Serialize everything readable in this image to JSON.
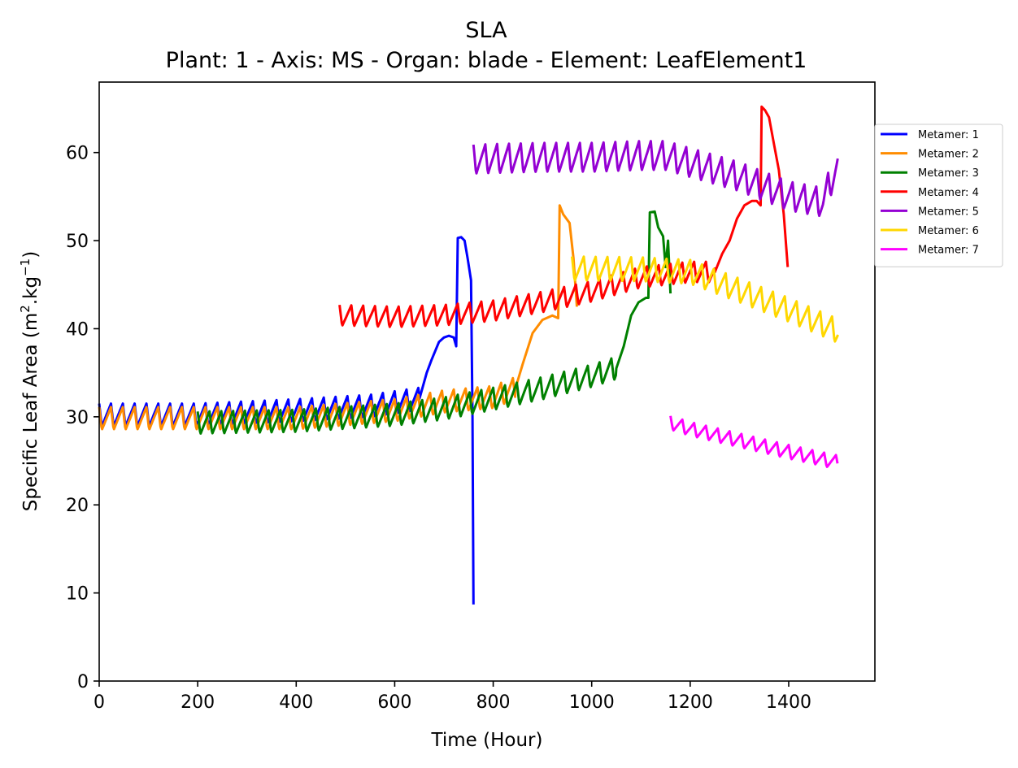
{
  "chart_data": {
    "type": "line",
    "title": "SLA",
    "subtitle": "Plant: 1 - Axis: MS - Organ: blade - Element: LeafElement1",
    "xlabel": "Time (Hour)",
    "ylabel_main": "Specific Leaf Area (m",
    "ylabel_sup1": "2",
    "ylabel_mid": ".kg",
    "ylabel_sup2": "−1",
    "ylabel_end": ")",
    "xlim": [
      0,
      1575
    ],
    "ylim": [
      0,
      68
    ],
    "xticks": [
      0,
      200,
      400,
      600,
      800,
      1000,
      1200,
      1400
    ],
    "yticks": [
      0,
      10,
      20,
      30,
      40,
      50,
      60
    ],
    "grid": false,
    "legend_position": "right-outside-top",
    "series": [
      {
        "name": "Metamer: 1",
        "color": "#0000ff",
        "oscillation": {
          "period": 24,
          "amplitude": 1.3
        },
        "base": [
          [
            0,
            30.2
          ],
          [
            200,
            30.2
          ],
          [
            400,
            30.7
          ],
          [
            550,
            31.2
          ],
          [
            650,
            32.0
          ]
        ],
        "tail": [
          [
            650,
            32.0
          ],
          [
            665,
            35
          ],
          [
            675,
            36.5
          ],
          [
            690,
            38.5
          ],
          [
            700,
            39
          ],
          [
            710,
            39.2
          ],
          [
            720,
            39
          ],
          [
            725,
            38
          ],
          [
            728,
            50.3
          ],
          [
            735,
            50.4
          ],
          [
            742,
            50
          ],
          [
            748,
            48
          ],
          [
            755,
            45.5
          ],
          [
            758,
            30
          ],
          [
            760,
            8.7
          ]
        ]
      },
      {
        "name": "Metamer: 2",
        "color": "#ff8c00",
        "oscillation": {
          "period": 24,
          "amplitude": 1.3
        },
        "base": [
          [
            0,
            29.8
          ],
          [
            200,
            29.8
          ],
          [
            400,
            29.8
          ],
          [
            600,
            30.7
          ],
          [
            700,
            31.7
          ],
          [
            800,
            32.2
          ],
          [
            845,
            33.2
          ]
        ],
        "tail": [
          [
            845,
            33.2
          ],
          [
            860,
            36
          ],
          [
            880,
            39.5
          ],
          [
            900,
            41
          ],
          [
            920,
            41.5
          ],
          [
            932,
            41.2
          ],
          [
            935,
            54
          ],
          [
            942,
            53
          ],
          [
            955,
            52
          ],
          [
            963,
            48
          ],
          [
            970,
            42.5
          ]
        ]
      },
      {
        "name": "Metamer: 3",
        "color": "#008000",
        "oscillation": {
          "period": 24,
          "amplitude": 1.3
        },
        "base": [
          [
            200,
            29.3
          ],
          [
            400,
            29.5
          ],
          [
            600,
            30.2
          ],
          [
            700,
            30.9
          ],
          [
            800,
            32.0
          ],
          [
            900,
            33.2
          ],
          [
            1000,
            34.6
          ],
          [
            1050,
            35.5
          ]
        ],
        "tail": [
          [
            1050,
            35.5
          ],
          [
            1065,
            38
          ],
          [
            1080,
            41.5
          ],
          [
            1095,
            43
          ],
          [
            1110,
            43.5
          ],
          [
            1115,
            43.5
          ],
          [
            1118,
            53.2
          ],
          [
            1128,
            53.3
          ],
          [
            1135,
            51.5
          ],
          [
            1145,
            50.5
          ],
          [
            1150,
            47
          ],
          [
            1155,
            50
          ],
          [
            1160,
            44
          ]
        ]
      },
      {
        "name": "Metamer: 4",
        "color": "#ff0000",
        "oscillation": {
          "period": 24,
          "amplitude": 1.2
        },
        "base": [
          [
            488,
            41.5
          ],
          [
            600,
            41.3
          ],
          [
            700,
            41.5
          ],
          [
            800,
            42.0
          ],
          [
            900,
            43.0
          ],
          [
            1000,
            44.2
          ],
          [
            1100,
            45.8
          ],
          [
            1200,
            46.4
          ],
          [
            1250,
            46.4
          ]
        ],
        "tail": [
          [
            1250,
            46.4
          ],
          [
            1265,
            48.5
          ],
          [
            1280,
            50
          ],
          [
            1295,
            52.5
          ],
          [
            1310,
            54
          ],
          [
            1325,
            54.5
          ],
          [
            1335,
            54.5
          ],
          [
            1343,
            54
          ],
          [
            1345,
            65.2
          ],
          [
            1352,
            64.8
          ],
          [
            1360,
            64
          ],
          [
            1370,
            61
          ],
          [
            1380,
            58
          ],
          [
            1390,
            53
          ],
          [
            1398,
            47
          ]
        ]
      },
      {
        "name": "Metamer: 5",
        "color": "#9400d3",
        "oscillation": {
          "period": 24,
          "amplitude": 1.7
        },
        "base": [
          [
            760,
            59.2
          ],
          [
            900,
            59.4
          ],
          [
            1000,
            59.4
          ],
          [
            1100,
            59.6
          ],
          [
            1150,
            59.6
          ],
          [
            1200,
            58.8
          ],
          [
            1300,
            57.2
          ],
          [
            1400,
            55.0
          ],
          [
            1470,
            54.3
          ],
          [
            1480,
            56.0
          ],
          [
            1500,
            58.5
          ]
        ],
        "tail": []
      },
      {
        "name": "Metamer: 6",
        "color": "#ffd700",
        "oscillation": {
          "period": 24,
          "amplitude": 1.4
        },
        "base": [
          [
            960,
            46.8
          ],
          [
            1100,
            46.7
          ],
          [
            1200,
            46.4
          ],
          [
            1300,
            44.3
          ],
          [
            1400,
            42.1
          ],
          [
            1500,
            39.7
          ]
        ],
        "tail": []
      },
      {
        "name": "Metamer: 7",
        "color": "#ff00ff",
        "oscillation": {
          "period": 24,
          "amplitude": 0.8
        },
        "base": [
          [
            1160,
            29.3
          ],
          [
            1200,
            28.6
          ],
          [
            1300,
            27.3
          ],
          [
            1400,
            26.0
          ],
          [
            1500,
            24.8
          ]
        ],
        "tail": []
      }
    ]
  }
}
